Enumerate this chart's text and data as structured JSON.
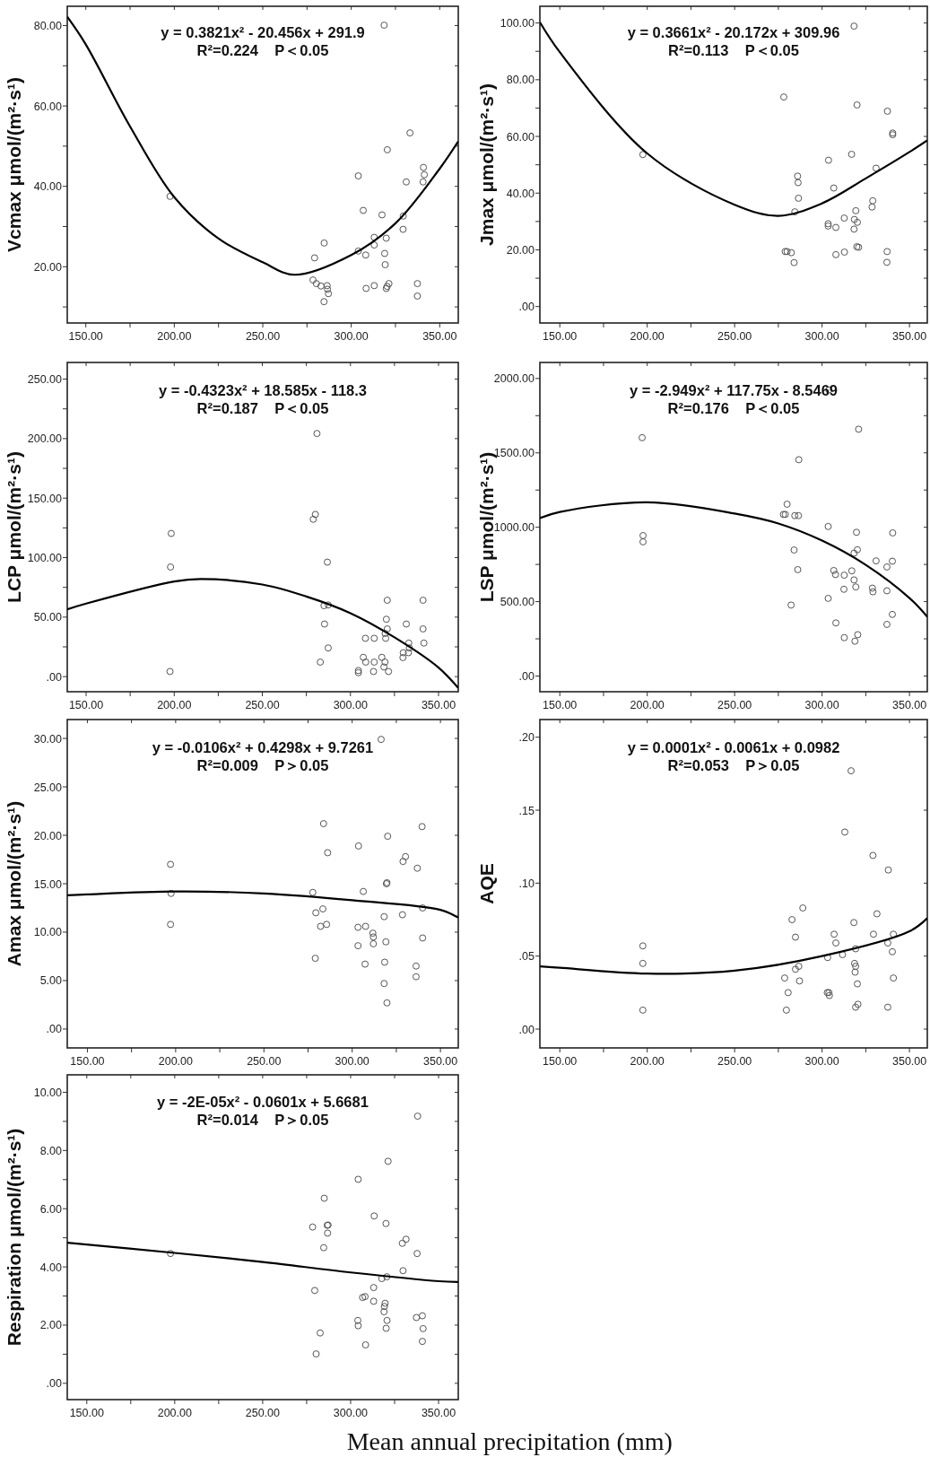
{
  "chart_data": [
    {
      "type": "scatter",
      "ylabel": "Vcmax μmol/(m²·s¹)",
      "annotations": [
        "y = 0.3821x² - 20.456x + 291.9",
        "R²=0.224    P＜0.05"
      ],
      "xlim": [
        139.5,
        360.5
      ],
      "xticks": [
        {
          "value": 150,
          "label": "150.00"
        },
        {
          "value": 175,
          "label": null
        },
        {
          "value": 200,
          "label": "200.00"
        },
        {
          "value": 225,
          "label": null
        },
        {
          "value": 250,
          "label": "250.00"
        },
        {
          "value": 275,
          "label": null
        },
        {
          "value": 300,
          "label": "300.00"
        },
        {
          "value": 325,
          "label": null
        },
        {
          "value": 350,
          "label": "350.00"
        }
      ],
      "ylim": [
        6,
        84.8
      ],
      "yticks": [
        {
          "value": 10,
          "label": null
        },
        {
          "value": 20,
          "label": "20.00"
        },
        {
          "value": 30,
          "label": null
        },
        {
          "value": 40,
          "label": "40.00"
        },
        {
          "value": 50,
          "label": null
        },
        {
          "value": 60,
          "label": "60.00"
        },
        {
          "value": 70,
          "label": null
        },
        {
          "value": 80,
          "label": "80.00"
        }
      ],
      "series": [
        {
          "type": "scatter",
          "marker": "circle",
          "color": "#555555",
          "x": [
            318.6,
            333.2,
            320.4,
            304.0,
            340.8,
            341.3,
            340.6,
            331.1,
            197.6,
            306.8,
            317.4,
            329.4,
            329.3,
            313.0,
            319.8,
            284.7,
            313.0,
            304.0,
            308.2,
            318.9,
            279.3,
            319.2,
            278.4,
            280.3,
            282.9,
            286.4,
            286.6,
            287.1,
            284.6,
            308.4,
            313.0,
            319.8,
            320.3,
            321.3,
            337.4,
            337.4
          ],
          "values": [
            80.1,
            53.3,
            49.1,
            42.6,
            44.7,
            42.9,
            41.1,
            41.1,
            37.5,
            34.0,
            32.9,
            32.6,
            29.3,
            27.3,
            27.1,
            25.9,
            25.4,
            23.9,
            22.9,
            23.3,
            22.2,
            20.5,
            16.7,
            15.8,
            15.2,
            15.3,
            14.4,
            13.3,
            11.3,
            14.6,
            15.3,
            14.6,
            15.1,
            15.8,
            15.8,
            12.7
          ]
        },
        {
          "type": "line",
          "marker": "none",
          "color": "#000000",
          "x": [
            139.5,
            150,
            175,
            200,
            225,
            250,
            268,
            300,
            325,
            350,
            360.5
          ],
          "values": [
            82.2,
            75.3,
            54.9,
            37.3,
            27.0,
            21.1,
            18.0,
            22.9,
            30.8,
            44.4,
            51.2
          ]
        }
      ]
    },
    {
      "type": "scatter",
      "ylabel": "Jmax μmol/(m²·s¹)",
      "annotations": [
        "y = 0.3661x² - 20.172x + 309.96",
        "R²=0.113    P＜0.05"
      ],
      "xlim": [
        138.6,
        360.2
      ],
      "xticks": [
        {
          "value": 150,
          "label": "150.00"
        },
        {
          "value": 175,
          "label": null
        },
        {
          "value": 200,
          "label": "200.00"
        },
        {
          "value": 225,
          "label": null
        },
        {
          "value": 250,
          "label": "250.00"
        },
        {
          "value": 275,
          "label": null
        },
        {
          "value": 300,
          "label": "300.00"
        },
        {
          "value": 325,
          "label": null
        },
        {
          "value": 350,
          "label": "350.00"
        }
      ],
      "ylim": [
        -5.8,
        105.9
      ],
      "yticks": [
        {
          "value": 0,
          "label": ".00"
        },
        {
          "value": 10,
          "label": null
        },
        {
          "value": 20,
          "label": "20.00"
        },
        {
          "value": 30,
          "label": null
        },
        {
          "value": 40,
          "label": "40.00"
        },
        {
          "value": 50,
          "label": null
        },
        {
          "value": 60,
          "label": "60.00"
        },
        {
          "value": 70,
          "label": null
        },
        {
          "value": 80,
          "label": "80.00"
        },
        {
          "value": 90,
          "label": null
        },
        {
          "value": 100,
          "label": "100.00"
        }
      ],
      "series": [
        {
          "type": "scatter",
          "marker": "circle",
          "color": "#555555",
          "x": [
            318.3,
            278.1,
            320.0,
            337.4,
            340.4,
            340.4,
            197.5,
            316.9,
            303.7,
            330.9,
            286.0,
            286.3,
            306.7,
            286.5,
            329.0,
            328.6,
            284.4,
            319.3,
            312.7,
            318.5,
            320.2,
            303.5,
            303.5,
            307.9,
            318.3,
            319.9,
            320.9,
            278.9,
            280.0,
            282.4,
            284.0,
            307.9,
            312.8,
            337.2,
            337.1
          ],
          "values": [
            98.9,
            73.9,
            71.1,
            68.9,
            61.2,
            60.6,
            53.6,
            53.7,
            51.6,
            48.8,
            46.0,
            43.7,
            41.8,
            38.2,
            37.3,
            35.1,
            33.4,
            33.8,
            31.2,
            30.7,
            29.7,
            29.2,
            28.4,
            27.9,
            27.3,
            21.1,
            20.9,
            19.4,
            19.4,
            19.0,
            15.5,
            18.3,
            19.2,
            19.4,
            15.6
          ]
        },
        {
          "type": "line",
          "marker": "none",
          "color": "#000000",
          "x": [
            138.6,
            150,
            200,
            250,
            275,
            300,
            325,
            350,
            360.2
          ],
          "values": [
            100.3,
            89.7,
            54.0,
            35.9,
            32.0,
            36.4,
            45.2,
            54.5,
            58.6
          ]
        }
      ]
    },
    {
      "type": "scatter",
      "ylabel": "LCP μmol/(m²·s¹)",
      "annotations": [
        "y = -0.4323x² + 18.585x - 118.3",
        "R²=0.187    P＜0.05"
      ],
      "xlim": [
        139.3,
        361.2
      ],
      "xticks": [
        {
          "value": 150,
          "label": "150.00"
        },
        {
          "value": 175,
          "label": null
        },
        {
          "value": 200,
          "label": "200.00"
        },
        {
          "value": 225,
          "label": null
        },
        {
          "value": 250,
          "label": "250.00"
        },
        {
          "value": 275,
          "label": null
        },
        {
          "value": 300,
          "label": "300.00"
        },
        {
          "value": 325,
          "label": null
        },
        {
          "value": 350,
          "label": "350.00"
        }
      ],
      "ylim": [
        -12.7,
        264
      ],
      "yticks": [
        {
          "value": 0,
          "label": ".00"
        },
        {
          "value": 25,
          "label": null
        },
        {
          "value": 50,
          "label": "50.00"
        },
        {
          "value": 75,
          "label": null
        },
        {
          "value": 100,
          "label": "100.00"
        },
        {
          "value": 125,
          "label": null
        },
        {
          "value": 150,
          "label": "150.00"
        },
        {
          "value": 175,
          "label": null
        },
        {
          "value": 200,
          "label": "200.00"
        },
        {
          "value": 225,
          "label": null
        },
        {
          "value": 250,
          "label": "250.00"
        }
      ],
      "series": [
        {
          "type": "scatter",
          "marker": "circle",
          "color": "#555555",
          "x": [
            281.0,
            280.1,
            278.9,
            198.3,
            197.9,
            286.9,
            285.0,
            287.4,
            285.3,
            287.4,
            282.9,
            197.6,
            320.9,
            341.2,
            320.4,
            331.7,
            320.9,
            341.2,
            319.7,
            320.0,
            308.5,
            313.5,
            333.1,
            341.7,
            333.4,
            330.0,
            332.9,
            329.8,
            307.3,
            317.8,
            308.7,
            313.5,
            319.6,
            319.0,
            304.5,
            304.5,
            313.1,
            321.6
          ],
          "values": [
            204.3,
            136.3,
            132.2,
            120.3,
            92.1,
            96.2,
            59.6,
            60.2,
            44.2,
            24.1,
            12.2,
            4.3,
            64.2,
            64.2,
            48.2,
            44.2,
            40.1,
            40.1,
            36.3,
            32.2,
            32.2,
            32.2,
            28.2,
            28.2,
            24.1,
            20.1,
            20.1,
            16.0,
            16.2,
            16.2,
            12.2,
            12.2,
            12.2,
            8.1,
            5.1,
            3.3,
            4.3,
            4.3
          ]
        },
        {
          "type": "line",
          "marker": "none",
          "color": "#000000",
          "x": [
            139.3,
            150,
            200,
            215,
            250,
            275,
            300,
            325,
            350,
            361.2
          ],
          "values": [
            56.6,
            61.4,
            80.0,
            82.0,
            77.4,
            67.3,
            53.3,
            33.0,
            7.6,
            -9.6
          ]
        }
      ]
    },
    {
      "type": "scatter",
      "ylabel": "LSP μmol/(m²·s¹)",
      "annotations": [
        "y = -2.949x² + 117.75x - 8.5469",
        "R²=0.176    P＜0.05"
      ],
      "xlim": [
        138.6,
        360.2
      ],
      "xticks": [
        {
          "value": 150,
          "label": "150.00"
        },
        {
          "value": 175,
          "label": null
        },
        {
          "value": 200,
          "label": "200.00"
        },
        {
          "value": 225,
          "label": null
        },
        {
          "value": 250,
          "label": "250.00"
        },
        {
          "value": 275,
          "label": null
        },
        {
          "value": 300,
          "label": "300.00"
        },
        {
          "value": 325,
          "label": null
        },
        {
          "value": 350,
          "label": "350.00"
        }
      ],
      "ylim": [
        -105.6,
        2107.6
      ],
      "yticks": [
        {
          "value": 0,
          "label": ".00"
        },
        {
          "value": 250,
          "label": null
        },
        {
          "value": 500,
          "label": "500.00"
        },
        {
          "value": 750,
          "label": null
        },
        {
          "value": 1000,
          "label": "1000.00"
        },
        {
          "value": 1250,
          "label": null
        },
        {
          "value": 1500,
          "label": "1500.00"
        },
        {
          "value": 1750,
          "label": null
        },
        {
          "value": 2000,
          "label": "2000.00"
        }
      ],
      "series": [
        {
          "type": "scatter",
          "marker": "circle",
          "color": "#555555",
          "x": [
            303.9,
            320.9,
            197.1,
            286.7,
            280.0,
            277.9,
            279.0,
            284.4,
            286.5,
            303.5,
            197.6,
            197.6,
            319.7,
            340.4,
            284.0,
            320.2,
            318.3,
            330.9,
            340.2,
            337.1,
            286.1,
            306.7,
            317.0,
            307.7,
            312.7,
            318.3,
            319.3,
            328.8,
            329.1,
            312.5,
            337.1,
            303.5,
            282.3,
            340.2,
            337.1,
            307.9,
            320.4,
            312.7,
            318.8
          ],
          "values": [
            1923,
            1659,
            1602,
            1454,
            1155,
            1086,
            1086,
            1078,
            1078,
            1005,
            944,
            902,
            966,
            962,
            847,
            849,
            826,
            774,
            772,
            733,
            715,
            709,
            707,
            682,
            678,
            646,
            599,
            591,
            566,
            583,
            573,
            522,
            477,
            414,
            347,
            357,
            278,
            258,
            234
          ]
        },
        {
          "type": "line",
          "marker": "none",
          "color": "#000000",
          "x": [
            138.6,
            150,
            200,
            250,
            275,
            300,
            325,
            350,
            360.2
          ],
          "values": [
            1062,
            1103,
            1168,
            1092,
            1025,
            910,
            747,
            524,
            398
          ]
        }
      ]
    },
    {
      "type": "scatter",
      "ylabel": "Amax μmol/(m²·s¹)",
      "annotations": [
        "y = -0.0106x² + 0.4298x + 9.7261",
        "R²=0.009    P＞0.05"
      ],
      "xlim": [
        138.6,
        360.1
      ],
      "xticks": [
        {
          "value": 150,
          "label": "150.00"
        },
        {
          "value": 175,
          "label": null
        },
        {
          "value": 200,
          "label": "200.00"
        },
        {
          "value": 225,
          "label": null
        },
        {
          "value": 250,
          "label": "250.00"
        },
        {
          "value": 275,
          "label": null
        },
        {
          "value": 300,
          "label": "300.00"
        },
        {
          "value": 325,
          "label": null
        },
        {
          "value": 350,
          "label": "350.00"
        }
      ],
      "ylim": [
        -1.95,
        31.95
      ],
      "yticks": [
        {
          "value": 0,
          "label": ".00"
        },
        {
          "value": 5,
          "label": "5.00"
        },
        {
          "value": 10,
          "label": "10.00"
        },
        {
          "value": 15,
          "label": "15.00"
        },
        {
          "value": 20,
          "label": "20.00"
        },
        {
          "value": 25,
          "label": "25.00"
        },
        {
          "value": 30,
          "label": "30.00"
        }
      ],
      "series": [
        {
          "type": "scatter",
          "marker": "circle",
          "color": "#555555",
          "x": [
            316.4,
            283.8,
            339.6,
            320.1,
            303.6,
            286.1,
            330.2,
            328.8,
            197.1,
            336.9,
            319.7,
            319.4,
            306.3,
            277.7,
            197.4,
            283.4,
            339.9,
            279.4,
            328.5,
            318.1,
            197.1,
            285.5,
            282.1,
            307.6,
            303.3,
            311.7,
            312.0,
            339.9,
            319.1,
            312.0,
            303.3,
            279.1,
            307.3,
            318.4,
            336.2,
            336.2,
            318.1,
            319.7
          ],
          "values": [
            29.9,
            21.2,
            20.9,
            19.9,
            18.9,
            18.2,
            17.8,
            17.3,
            17.0,
            16.6,
            15.1,
            15.0,
            14.2,
            14.1,
            14.0,
            12.4,
            12.5,
            12.0,
            11.8,
            11.6,
            10.8,
            10.8,
            10.6,
            10.6,
            10.5,
            9.9,
            9.5,
            9.4,
            9.0,
            8.8,
            8.6,
            7.3,
            6.7,
            6.9,
            6.5,
            5.4,
            4.7,
            2.7
          ]
        },
        {
          "type": "line",
          "marker": "none",
          "color": "#000000",
          "x": [
            138.6,
            150,
            200,
            250,
            300,
            350,
            360.1
          ],
          "values": [
            13.8,
            13.9,
            14.2,
            14.0,
            13.3,
            12.3,
            11.5
          ]
        }
      ]
    },
    {
      "type": "scatter",
      "ylabel": "AQE",
      "annotations": [
        "y = 0.0001x² - 0.0061x + 0.0982",
        "R²=0.053    P＞0.05"
      ],
      "xlim": [
        138.6,
        360.2
      ],
      "xticks": [
        {
          "value": 150,
          "label": "150.00"
        },
        {
          "value": 175,
          "label": null
        },
        {
          "value": 200,
          "label": "200.00"
        },
        {
          "value": 225,
          "label": null
        },
        {
          "value": 250,
          "label": "250.00"
        },
        {
          "value": 275,
          "label": null
        },
        {
          "value": 300,
          "label": "300.00"
        },
        {
          "value": 325,
          "label": null
        },
        {
          "value": 350,
          "label": "350.00"
        }
      ],
      "ylim": [
        -0.0129,
        0.2121
      ],
      "yticks": [
        {
          "value": 0,
          "label": ".00"
        },
        {
          "value": 0.05,
          "label": ".05"
        },
        {
          "value": 0.1,
          "label": ".10"
        },
        {
          "value": 0.15,
          "label": ".15"
        },
        {
          "value": 0.2,
          "label": ".20"
        }
      ],
      "series": [
        {
          "type": "scatter",
          "marker": "circle",
          "color": "#555555",
          "x": [
            316.6,
            313.0,
            329.1,
            337.9,
            331.4,
            289.0,
            282.8,
            318.2,
            197.5,
            284.8,
            306.9,
            329.4,
            340.8,
            307.9,
            337.6,
            319.2,
            311.7,
            340.2,
            303.2,
            197.5,
            284.8,
            286.7,
            318.6,
            319.2,
            303.0,
            318.9,
            278.6,
            287.1,
            340.8,
            320.2,
            303.9,
            304.2,
            280.6,
            320.5,
            319.2,
            337.6,
            279.6,
            197.5
          ],
          "values": [
            0.177,
            0.135,
            0.119,
            0.109,
            0.079,
            0.083,
            0.075,
            0.073,
            0.057,
            0.063,
            0.065,
            0.065,
            0.065,
            0.059,
            0.059,
            0.055,
            0.051,
            0.053,
            0.049,
            0.045,
            0.041,
            0.043,
            0.045,
            0.043,
            0.025,
            0.039,
            0.035,
            0.033,
            0.035,
            0.031,
            0.025,
            0.023,
            0.025,
            0.017,
            0.015,
            0.015,
            0.013,
            0.013
          ]
        },
        {
          "type": "line",
          "marker": "none",
          "color": "#000000",
          "x": [
            138.6,
            150,
            200,
            250,
            300,
            350,
            360.2
          ],
          "values": [
            0.043,
            0.042,
            0.038,
            0.04,
            0.05,
            0.067,
            0.076
          ]
        }
      ]
    },
    {
      "type": "scatter",
      "ylabel": "Respiration μmol/(m²·s¹)",
      "xlabel": "Mean annual precipitation (mm)",
      "annotations": [
        "y = -2E-05x² - 0.0601x + 5.6681",
        "R²=0.014    P＞0.05"
      ],
      "xlim": [
        138.9,
        361.2
      ],
      "xticks": [
        {
          "value": 150,
          "label": "150.00"
        },
        {
          "value": 175,
          "label": null
        },
        {
          "value": 200,
          "label": "200.00"
        },
        {
          "value": 225,
          "label": null
        },
        {
          "value": 250,
          "label": "250.00"
        },
        {
          "value": 275,
          "label": null
        },
        {
          "value": 300,
          "label": "300.00"
        },
        {
          "value": 325,
          "label": null
        },
        {
          "value": 350,
          "label": "350.00"
        }
      ],
      "ylim": [
        -0.56,
        10.6
      ],
      "yticks": [
        {
          "value": 0,
          "label": ".00"
        },
        {
          "value": 1,
          "label": null
        },
        {
          "value": 2,
          "label": "2.00"
        },
        {
          "value": 3,
          "label": null
        },
        {
          "value": 4,
          "label": "4.00"
        },
        {
          "value": 5,
          "label": null
        },
        {
          "value": 6,
          "label": "6.00"
        },
        {
          "value": 7,
          "label": null
        },
        {
          "value": 8,
          "label": "8.00"
        },
        {
          "value": 9,
          "label": null
        },
        {
          "value": 10,
          "label": "10.00"
        }
      ],
      "series": [
        {
          "type": "scatter",
          "marker": "circle",
          "color": "#555555",
          "x": [
            338.1,
            321.3,
            304.3,
            285.0,
            313.4,
            320.1,
            278.4,
            286.7,
            287.2,
            286.9,
            331.5,
            329.4,
            284.7,
            337.8,
            197.6,
            329.8,
            317.7,
            320.6,
            313.1,
            279.6,
            306.8,
            308.2,
            313.1,
            319.6,
            319.2,
            319.0,
            304.1,
            320.7,
            337.4,
            340.8,
            304.3,
            320.2,
            341.2,
            282.7,
            340.8,
            308.5,
            280.4
          ],
          "values": [
            9.18,
            7.63,
            7.01,
            6.36,
            5.75,
            5.49,
            5.37,
            5.43,
            5.44,
            5.16,
            4.95,
            4.81,
            4.66,
            4.46,
            4.46,
            3.87,
            3.6,
            3.66,
            3.29,
            3.19,
            2.95,
            2.98,
            2.82,
            2.75,
            2.64,
            2.46,
            2.16,
            2.16,
            2.26,
            2.32,
            1.98,
            1.89,
            1.88,
            1.73,
            1.44,
            1.32,
            1.01
          ]
        },
        {
          "type": "line",
          "marker": "none",
          "color": "#000000",
          "x": [
            138.9,
            200,
            250,
            300,
            350,
            361.2
          ],
          "values": [
            4.83,
            4.48,
            4.17,
            3.81,
            3.51,
            3.48
          ]
        }
      ]
    }
  ]
}
